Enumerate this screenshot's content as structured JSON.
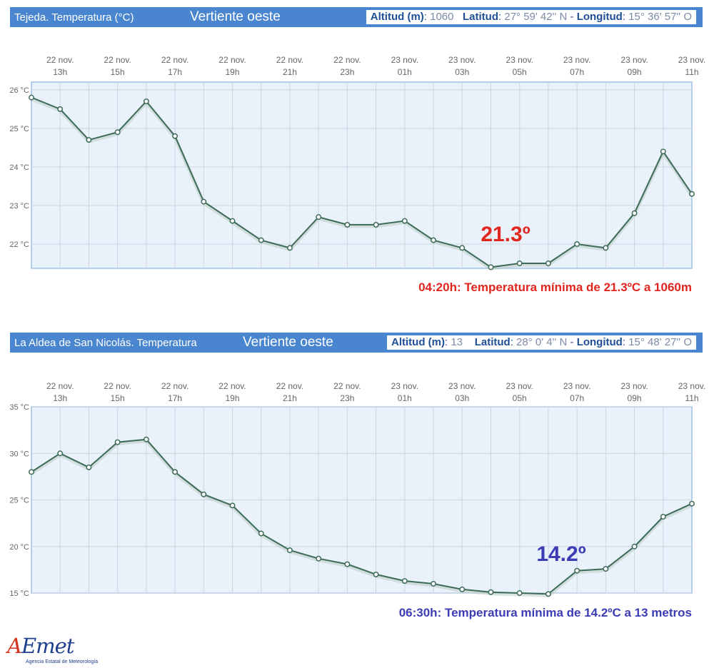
{
  "logo": {
    "brand_a": "A",
    "brand_rest": "Emet",
    "subtitle": "Agencia Estatal de Meteorología"
  },
  "chart_data": [
    {
      "type": "line",
      "station": "Tejeda. Temperatura (°C)",
      "slope": "Vertiente oeste",
      "altitude_label": "Altitud (m)",
      "altitude_value": "1060",
      "latitude_label": "Latitud",
      "latitude_value": "27° 59' 42'' N",
      "longitude_label": "Longitud",
      "longitude_value": "15° 36' 57'' O",
      "x_ticks": [
        {
          "day": "22 nov.",
          "hour": "13h"
        },
        {
          "day": "22 nov.",
          "hour": "15h"
        },
        {
          "day": "22 nov.",
          "hour": "17h"
        },
        {
          "day": "22 nov.",
          "hour": "19h"
        },
        {
          "day": "22 nov.",
          "hour": "21h"
        },
        {
          "day": "22 nov.",
          "hour": "23h"
        },
        {
          "day": "23 nov.",
          "hour": "01h"
        },
        {
          "day": "23 nov.",
          "hour": "03h"
        },
        {
          "day": "23 nov.",
          "hour": "05h"
        },
        {
          "day": "23 nov.",
          "hour": "07h"
        },
        {
          "day": "23 nov.",
          "hour": "09h"
        },
        {
          "day": "23 nov.",
          "hour": "11h"
        }
      ],
      "y_ticks": [
        "22 °C",
        "23 °C",
        "24 °C",
        "25 °C",
        "26 °C"
      ],
      "y_tick_values": [
        22,
        23,
        24,
        25,
        26
      ],
      "ylim": [
        21.37,
        26.2
      ],
      "x_start_hour": 12,
      "x_end_hour": 35,
      "x_step_hours": 1,
      "values": [
        25.8,
        25.5,
        24.7,
        24.9,
        25.7,
        24.8,
        23.1,
        22.6,
        22.1,
        21.9,
        22.7,
        22.5,
        22.5,
        22.6,
        22.1,
        21.9,
        21.4,
        21.5,
        21.5,
        22.0,
        21.9,
        22.8,
        24.4,
        23.3
      ],
      "min_label": "21.3º",
      "min_color": "#e0261e",
      "note": "04:20h: Temperatura mínima de 21.3ºC a 1060m",
      "grid": true
    },
    {
      "type": "line",
      "station": "La Aldea de San Nicolás. Temperatura",
      "slope": "Vertiente oeste",
      "altitude_label": "Altitud (m)",
      "altitude_value": "13",
      "latitude_label": "Latitud",
      "latitude_value": "28° 0' 4'' N",
      "longitude_label": "Longitud",
      "longitude_value": "15° 48' 27'' O",
      "x_ticks": [
        {
          "day": "22 nov.",
          "hour": "13h"
        },
        {
          "day": "22 nov.",
          "hour": "15h"
        },
        {
          "day": "22 nov.",
          "hour": "17h"
        },
        {
          "day": "22 nov.",
          "hour": "19h"
        },
        {
          "day": "22 nov.",
          "hour": "21h"
        },
        {
          "day": "22 nov.",
          "hour": "23h"
        },
        {
          "day": "23 nov.",
          "hour": "01h"
        },
        {
          "day": "23 nov.",
          "hour": "03h"
        },
        {
          "day": "23 nov.",
          "hour": "05h"
        },
        {
          "day": "23 nov.",
          "hour": "07h"
        },
        {
          "day": "23 nov.",
          "hour": "09h"
        },
        {
          "day": "23 nov.",
          "hour": "11h"
        }
      ],
      "y_ticks": [
        "15 °C",
        "20 °C",
        "25 °C",
        "30 °C",
        "35 °C"
      ],
      "y_tick_values": [
        15,
        20,
        25,
        30,
        35
      ],
      "ylim": [
        15,
        35
      ],
      "x_start_hour": 12,
      "x_end_hour": 35,
      "x_step_hours": 1,
      "values": [
        28.0,
        30.0,
        28.5,
        31.2,
        31.5,
        28.0,
        25.6,
        24.4,
        21.4,
        19.6,
        18.7,
        18.1,
        17.0,
        16.3,
        16.0,
        15.4,
        15.1,
        15.0,
        14.9,
        17.4,
        17.6,
        20.0,
        23.2,
        24.6
      ],
      "min_label": "14.2º",
      "min_color": "#3c3cb4",
      "note": "06:30h: Temperatura mínima de 14.2ºC a 13 metros",
      "grid": true
    }
  ]
}
